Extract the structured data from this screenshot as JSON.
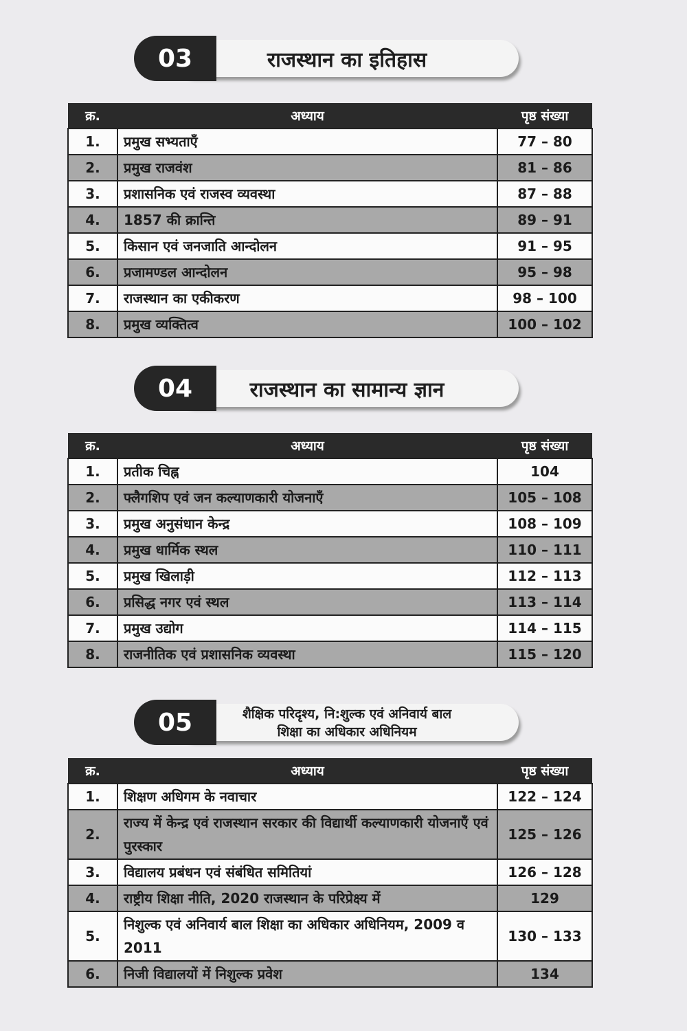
{
  "sections": [
    {
      "number": "03",
      "title": [
        "राजस्थान का इतिहास"
      ],
      "header": [
        "क्र.",
        "अध्याय",
        "पृष्ठ संख्या"
      ],
      "rows": [
        [
          "1.",
          "प्रमुख सभ्यताएँ",
          "77 – 80"
        ],
        [
          "2.",
          "प्रमुख राजवंश",
          "81 – 86"
        ],
        [
          "3.",
          "प्रशासनिक एवं राजस्व व्यवस्था",
          "87 – 88"
        ],
        [
          "4.",
          "1857 की क्रान्ति",
          "89 – 91"
        ],
        [
          "5.",
          "किसान एवं जनजाति आन्दोलन",
          "91 – 95"
        ],
        [
          "6.",
          "प्रजामण्डल आन्दोलन",
          "95 – 98"
        ],
        [
          "7.",
          "राजस्थान का एकीकरण",
          "98 – 100"
        ],
        [
          "8.",
          "प्रमुख व्यक्तित्व",
          "100 – 102"
        ]
      ]
    },
    {
      "number": "04",
      "title": [
        "राजस्थान का सामान्य ज्ञान"
      ],
      "header": [
        "क्र.",
        "अध्याय",
        "पृष्ठ संख्या"
      ],
      "rows": [
        [
          "1.",
          "प्रतीक चिह्न",
          "104"
        ],
        [
          "2.",
          "फ्लैगशिप एवं जन कल्याणकारी योजनाएँ",
          "105 – 108"
        ],
        [
          "3.",
          "प्रमुख अनुसंधान केन्द्र",
          "108 – 109"
        ],
        [
          "4.",
          "प्रमुख धार्मिक स्थल",
          "110 – 111"
        ],
        [
          "5.",
          "प्रमुख खिलाड़ी",
          "112 – 113"
        ],
        [
          "6.",
          "प्रसिद्ध नगर एवं स्थल",
          "113 – 114"
        ],
        [
          "7.",
          "प्रमुख उद्योग",
          "114 – 115"
        ],
        [
          "8.",
          "राजनीतिक एवं प्रशासनिक व्यवस्था",
          "115 – 120"
        ]
      ]
    },
    {
      "number": "05",
      "title": [
        "शैक्षिक परिदृश्य, नि:शुल्क एवं अनिवार्य बाल",
        "शिक्षा का अधिकार अधिनियम"
      ],
      "header": [
        "क्र.",
        "अध्याय",
        "पृष्ठ संख्या"
      ],
      "rows": [
        [
          "1.",
          "शिक्षण अधिगम के नवाचार",
          "122 – 124"
        ],
        [
          "2.",
          "राज्य में केन्द्र एवं राजस्थान सरकार की विद्यार्थी कल्याणकारी योजनाएँ एवं पुरस्कार",
          "125 – 126"
        ],
        [
          "3.",
          "विद्यालय प्रबंधन एवं संबंधित समितियां",
          "126 – 128"
        ],
        [
          "4.",
          "राष्ट्रीय शिक्षा नीति, 2020 राजस्थान के परिप्रेक्ष्य में",
          "129"
        ],
        [
          "5.",
          "निशुल्क एवं अनिवार्य बाल शिक्षा का अधिकार अधिनियम, 2009 व 2011",
          "130 – 133"
        ],
        [
          "6.",
          "निजी विद्यालयों में निशुल्क प्रवेश",
          "134"
        ]
      ]
    }
  ]
}
